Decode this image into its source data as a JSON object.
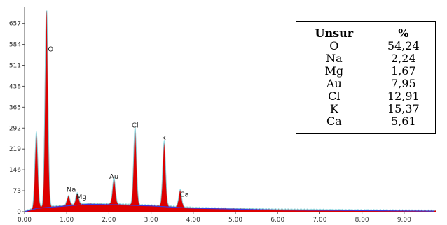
{
  "chart_data": {
    "type": "area",
    "title": "",
    "xlabel": "",
    "ylabel": "",
    "xlim": [
      0,
      9.75
    ],
    "ylim": [
      0,
      700
    ],
    "x_ticks": [
      "0.00",
      "1.00",
      "2.00",
      "3.00",
      "4.00",
      "5.00",
      "6.00",
      "7.00",
      "8.00",
      "9.00"
    ],
    "y_ticks": [
      "0",
      "73",
      "146",
      "219",
      "292",
      "365",
      "438",
      "511",
      "584",
      "657"
    ],
    "peaks": [
      {
        "element": "O",
        "x": 0.52,
        "height": 700
      },
      {
        "element": "Na",
        "x": 1.04,
        "height": 32
      },
      {
        "element": "Mg",
        "x": 1.25,
        "height": 40
      },
      {
        "element": "Au",
        "x": 2.12,
        "height": 90
      },
      {
        "element": "Cl",
        "x": 2.62,
        "height": 265
      },
      {
        "element": "K",
        "x": 3.31,
        "height": 220
      },
      {
        "element": "Ca",
        "x": 3.69,
        "height": 58
      }
    ],
    "unlabeled_peaks": [
      {
        "x": 0.28,
        "height": 260
      }
    ],
    "background": [
      [
        0,
        0
      ],
      [
        0.3,
        12
      ],
      [
        1.0,
        20
      ],
      [
        1.5,
        26
      ],
      [
        2.2,
        24
      ],
      [
        3.0,
        20
      ],
      [
        4.0,
        12
      ],
      [
        6.0,
        6
      ],
      [
        9.75,
        2
      ]
    ],
    "fill_color": "#dd0000",
    "overlay_color": "#86d8e2",
    "baseline_color": "#3a3adf"
  },
  "composition_table": {
    "headers": [
      "Unsur",
      "%"
    ],
    "rows": [
      [
        "O",
        "54,24"
      ],
      [
        "Na",
        "2,24"
      ],
      [
        "Mg",
        "1,67"
      ],
      [
        "Au",
        "7,95"
      ],
      [
        "Cl",
        "12,91"
      ],
      [
        "K",
        "15,37"
      ],
      [
        "Ca",
        "5,61"
      ]
    ]
  }
}
